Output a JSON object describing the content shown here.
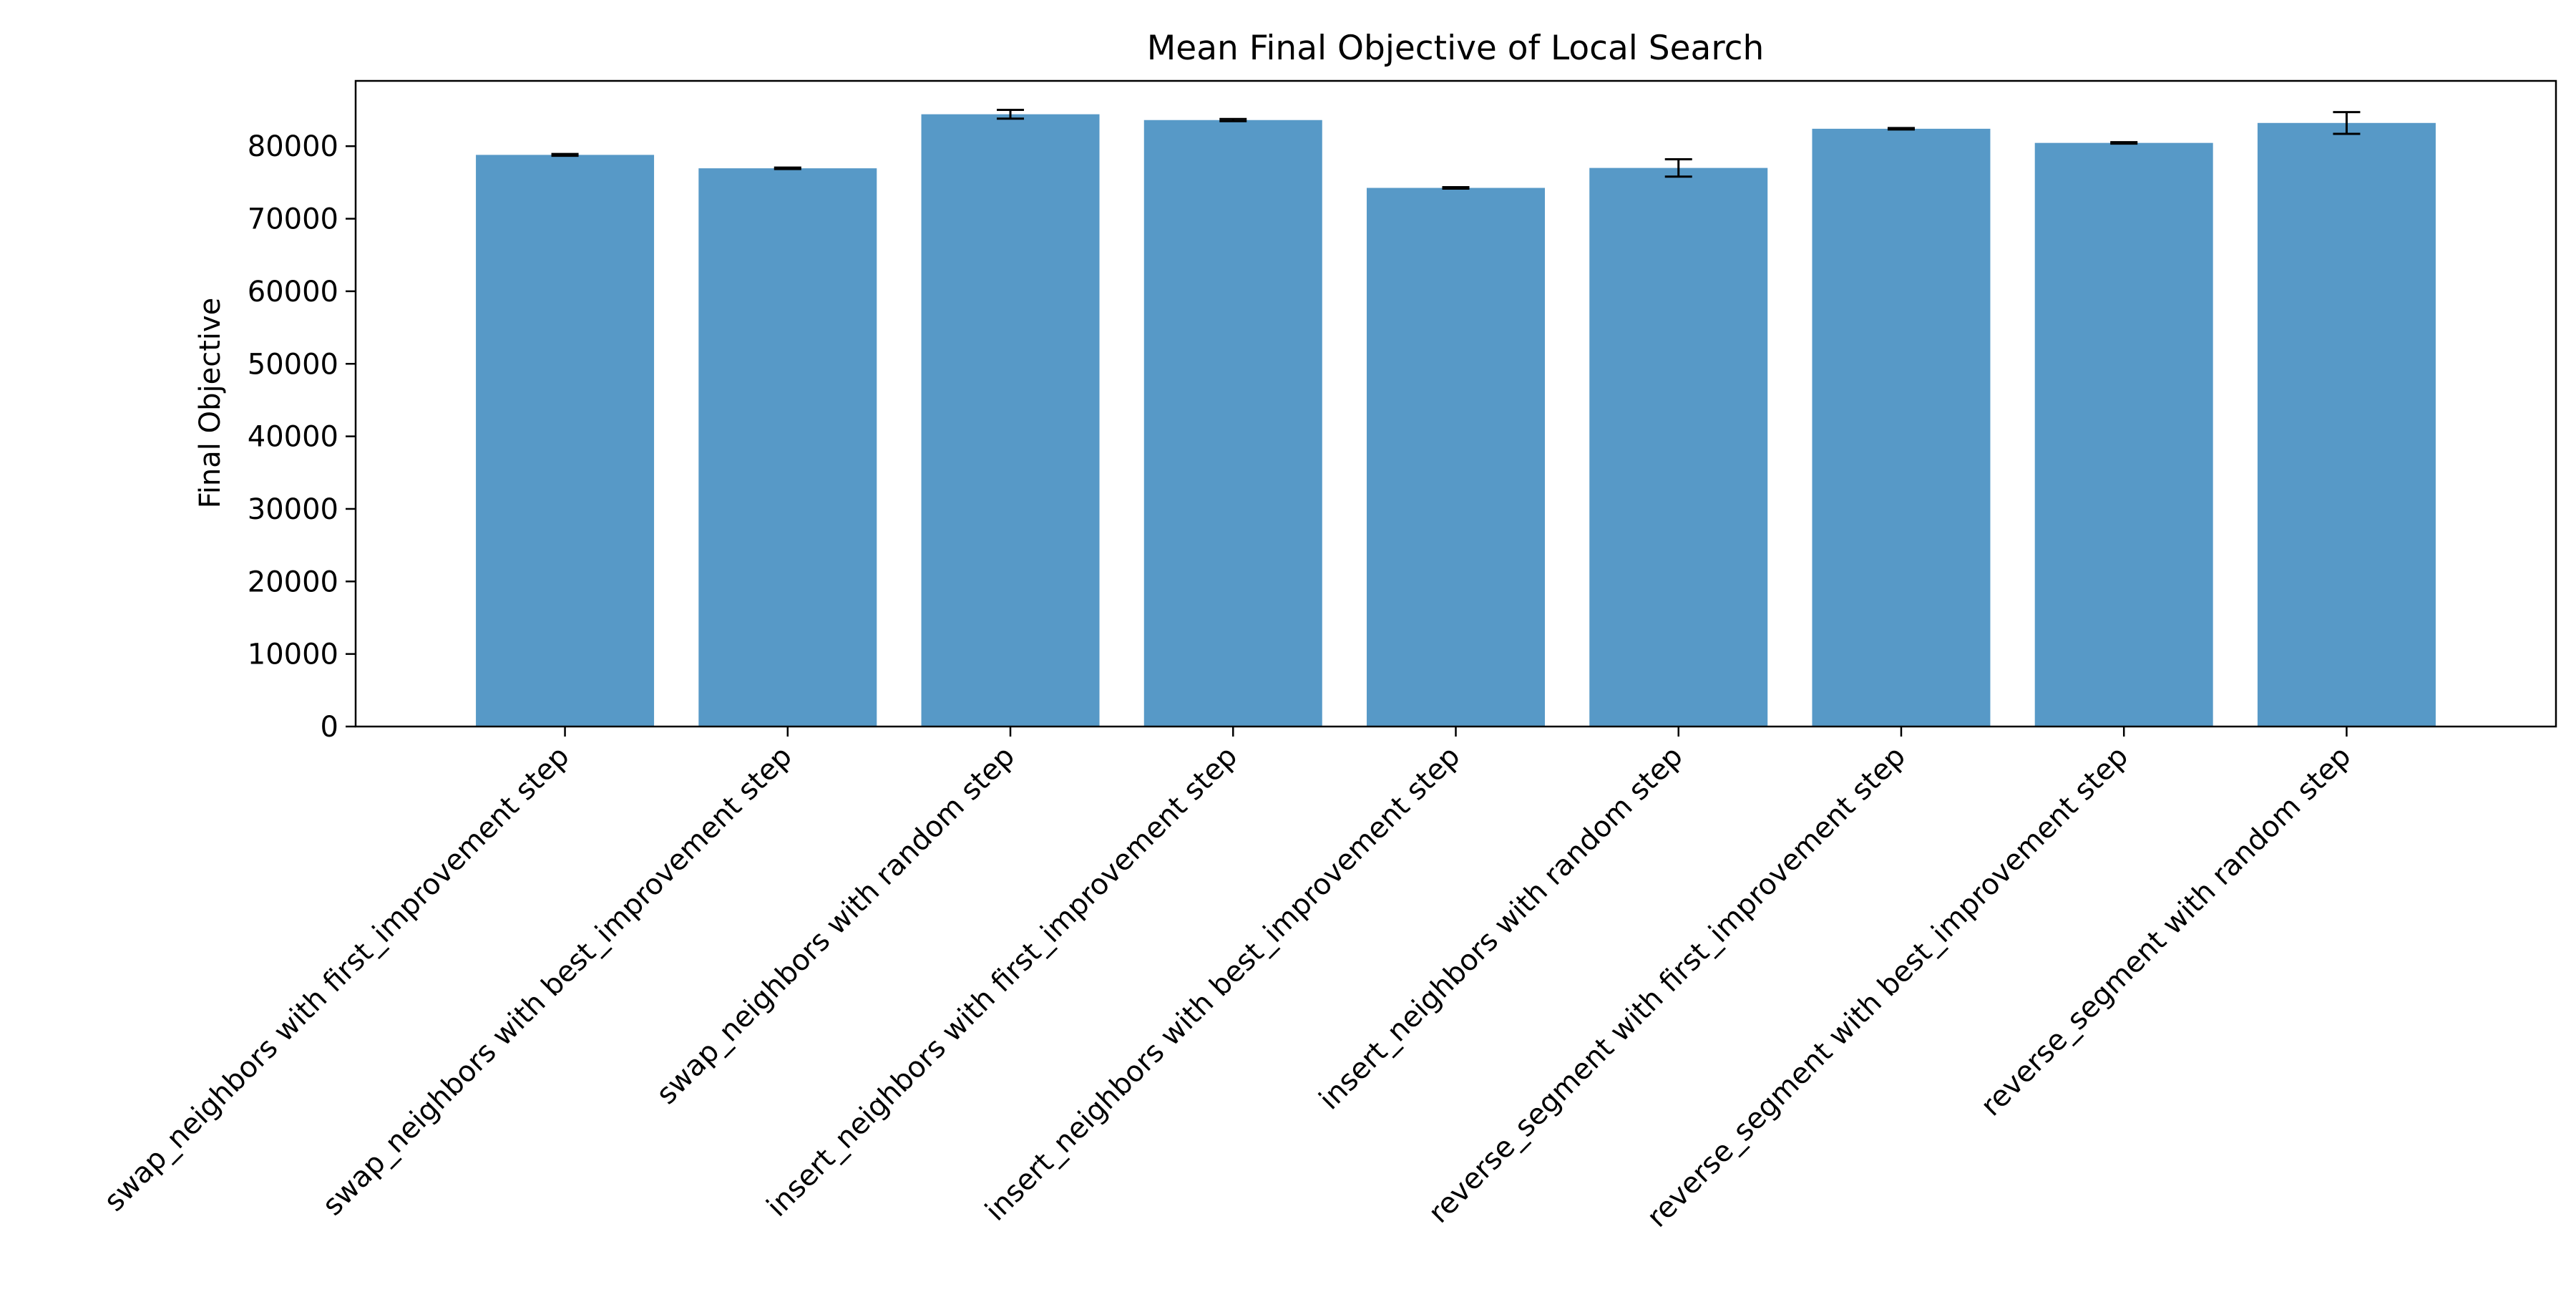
{
  "chart_data": {
    "type": "bar",
    "title": "Mean Final Objective of Local Search",
    "xlabel": "",
    "ylabel": "Final Objective",
    "ylim": [
      0,
      89000
    ],
    "yticks": [
      0,
      10000,
      20000,
      30000,
      40000,
      50000,
      60000,
      70000,
      80000
    ],
    "grid": false,
    "bar_color": "#5799c7",
    "error_color": "#000000",
    "categories": [
      "swap_neighbors with first_improvement step",
      "swap_neighbors with best_improvement step",
      "swap_neighbors with random step",
      "insert_neighbors with first_improvement step",
      "insert_neighbors with best_improvement step",
      "insert_neighbors with random step",
      "reverse_segment with first_improvement step",
      "reverse_segment with best_improvement step",
      "reverse_segment with random step"
    ],
    "values": [
      78800,
      76950,
      84400,
      83600,
      74250,
      77000,
      82400,
      80450,
      83200
    ],
    "errors": [
      120,
      100,
      600,
      150,
      100,
      1200,
      100,
      100,
      1500
    ]
  }
}
